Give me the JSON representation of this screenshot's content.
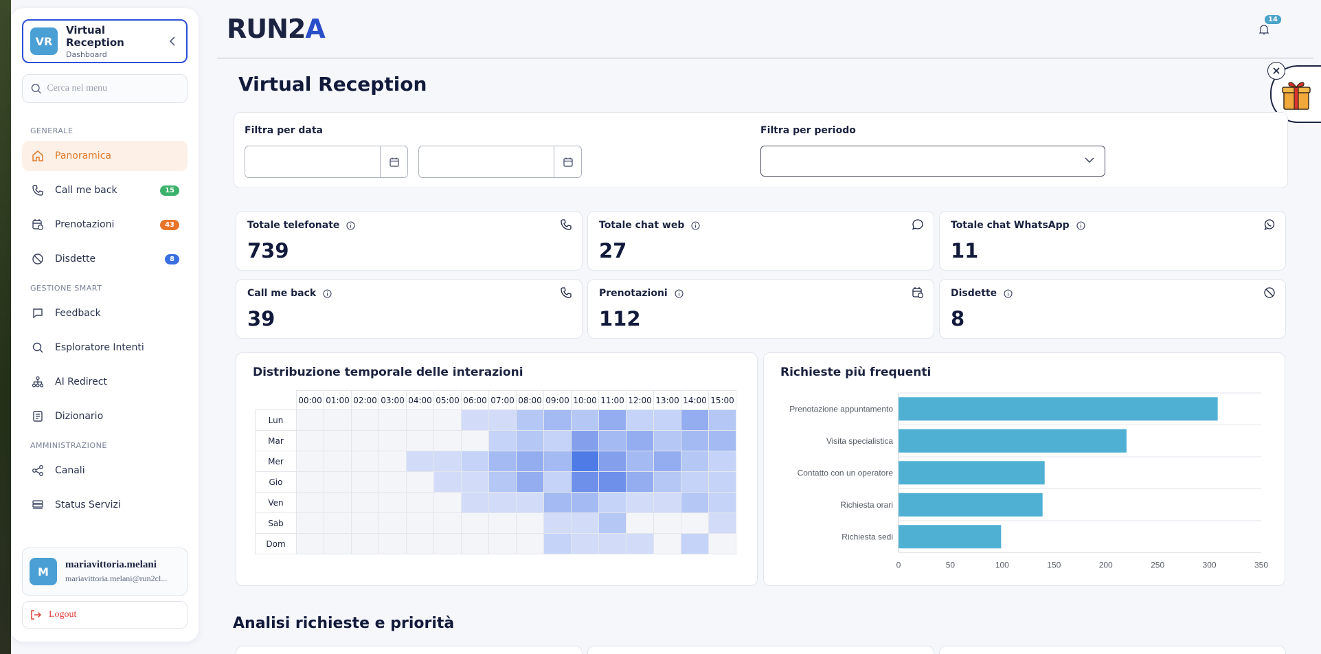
{
  "sidebar": {
    "brand": {
      "initials": "VR",
      "title": "Virtual Reception",
      "subtitle": "Dashboard"
    },
    "search_placeholder": "Cerca nel menu",
    "sections": {
      "generale": "GENERALE",
      "gestione": "GESTIONE SMART",
      "amministrazione": "AMMINISTRAZIONE"
    },
    "items": {
      "panoramica": "Panoramica",
      "callmeback": "Call me back",
      "callmeback_badge": "15",
      "prenotazioni": "Prenotazioni",
      "prenotazioni_badge": "43",
      "disdette": "Disdette",
      "disdette_badge": "8",
      "feedback": "Feedback",
      "esploratore": "Esploratore Intenti",
      "airedirect": "AI Redirect",
      "dizionario": "Dizionario",
      "canali": "Canali",
      "status": "Status Servizi"
    },
    "user": {
      "initial": "M",
      "name": "mariavittoria.melani",
      "email": "mariavittoria.melani@run2cl..."
    },
    "logout": "Logout"
  },
  "header": {
    "logo_main": "RUN2",
    "logo_accent": "A",
    "notifications": "14"
  },
  "page": {
    "title": "Virtual Reception",
    "section2_title": "Analisi richieste e priorità"
  },
  "filters": {
    "date_label": "Filtra per data",
    "period_label": "Filtra per periodo",
    "date_from": "",
    "date_to": "",
    "period_value": ""
  },
  "kpis": [
    {
      "title": "Totale telefonate",
      "value": "739",
      "icon": "phone-icon"
    },
    {
      "title": "Totale chat web",
      "value": "27",
      "icon": "chat-icon"
    },
    {
      "title": "Totale chat WhatsApp",
      "value": "11",
      "icon": "whatsapp-icon"
    },
    {
      "title": "Call me back",
      "value": "39",
      "icon": "phone-icon"
    },
    {
      "title": "Prenotazioni",
      "value": "112",
      "icon": "calendar-icon"
    },
    {
      "title": "Disdette",
      "value": "8",
      "icon": "ban-icon"
    }
  ],
  "heatmap": {
    "title": "Distribuzione temporale delle interazioni",
    "hours": [
      "00:00",
      "01:00",
      "02:00",
      "03:00",
      "04:00",
      "05:00",
      "06:00",
      "07:00",
      "08:00",
      "09:00",
      "10:00",
      "11:00",
      "12:00",
      "13:00",
      "14:00",
      "15:00"
    ],
    "days": [
      "Lun",
      "Mar",
      "Mer",
      "Gio",
      "Ven",
      "Sab",
      "Dom"
    ],
    "levels": [
      [
        0,
        0,
        0,
        0,
        0,
        0,
        2,
        2,
        4,
        5,
        4,
        6,
        3,
        3,
        6,
        4
      ],
      [
        0,
        0,
        0,
        0,
        0,
        0,
        0,
        3,
        4,
        3,
        7,
        5,
        6,
        4,
        5,
        5
      ],
      [
        0,
        0,
        0,
        0,
        2,
        2,
        3,
        5,
        6,
        5,
        9,
        7,
        5,
        6,
        4,
        3
      ],
      [
        0,
        0,
        0,
        0,
        0,
        2,
        2,
        4,
        6,
        3,
        8,
        8,
        6,
        4,
        3,
        3
      ],
      [
        0,
        0,
        0,
        0,
        0,
        0,
        2,
        2,
        2,
        5,
        5,
        3,
        2,
        2,
        4,
        3
      ],
      [
        0,
        0,
        0,
        0,
        0,
        0,
        0,
        0,
        0,
        2,
        2,
        4,
        0,
        0,
        0,
        2
      ],
      [
        0,
        0,
        0,
        0,
        0,
        0,
        0,
        0,
        0,
        3,
        2,
        2,
        2,
        0,
        3,
        0
      ]
    ]
  },
  "chart_data": {
    "type": "bar",
    "orientation": "horizontal",
    "title": "Richieste più frequenti",
    "categories": [
      "Prenotazione appuntamento",
      "Visita specialistica",
      "Contatto con un operatore",
      "Richiesta orari",
      "Richiesta sedi"
    ],
    "values": [
      308,
      220,
      141,
      139,
      99
    ],
    "xlim": [
      0,
      350
    ],
    "xticks": [
      0,
      50,
      100,
      150,
      200,
      250,
      300,
      350
    ],
    "bar_color": "#4fb0d4"
  }
}
